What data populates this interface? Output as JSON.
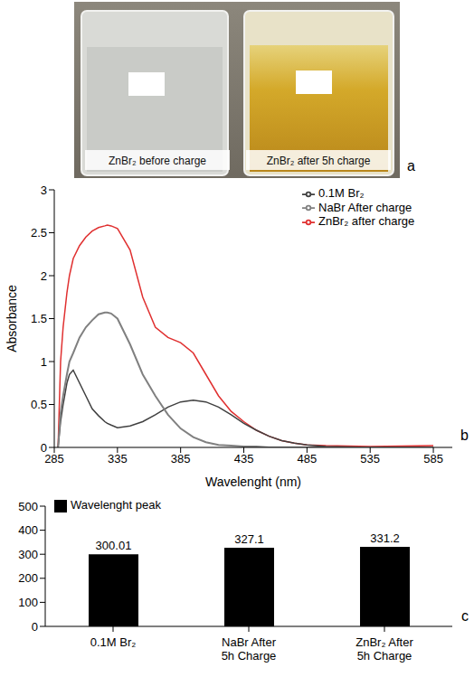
{
  "image": {
    "labels": [
      "ZnBr₂ before charge",
      "ZnBr₂ after 5h charge"
    ],
    "letter": "a"
  },
  "chart_data": [
    {
      "type": "line",
      "letter": "b",
      "x_label": "Wavelenght (nm)",
      "y_label": "Absorbance",
      "x": [
        288,
        290,
        292,
        295,
        297,
        300,
        305,
        310,
        315,
        320,
        325,
        327,
        330,
        335,
        345,
        355,
        365,
        375,
        385,
        395,
        405,
        415,
        425,
        435,
        445,
        455,
        465,
        475,
        485,
        500,
        535,
        585
      ],
      "xlim": [
        285,
        600
      ],
      "xticks": [
        285,
        335,
        385,
        435,
        485,
        535,
        585
      ],
      "ylim": [
        0,
        3
      ],
      "yticks": [
        0,
        0.5,
        1,
        1.5,
        2,
        2.5,
        3
      ],
      "grid": false,
      "legend": "top right",
      "series": [
        {
          "name": "ZnBr₂ after charge",
          "color": "#e03030",
          "values": [
            0,
            1.0,
            1.4,
            1.8,
            2.0,
            2.2,
            2.35,
            2.45,
            2.52,
            2.56,
            2.58,
            2.59,
            2.58,
            2.55,
            2.3,
            1.75,
            1.4,
            1.28,
            1.22,
            1.1,
            0.85,
            0.6,
            0.42,
            0.3,
            0.2,
            0.13,
            0.08,
            0.05,
            0.03,
            0.02,
            0.01,
            0.02
          ]
        },
        {
          "name": "0.1M Br₂",
          "color": "#404040",
          "values": [
            0,
            0.3,
            0.5,
            0.75,
            0.85,
            0.9,
            0.75,
            0.6,
            0.45,
            0.37,
            0.3,
            0.28,
            0.26,
            0.23,
            0.25,
            0.3,
            0.38,
            0.47,
            0.53,
            0.55,
            0.53,
            0.47,
            0.38,
            0.28,
            0.2,
            0.13,
            0.08,
            0.05,
            0.03,
            0.01,
            0,
            0
          ]
        },
        {
          "name": "NaBr After charge",
          "color": "#808080",
          "values": [
            0,
            0.4,
            0.6,
            0.85,
            1.0,
            1.1,
            1.28,
            1.4,
            1.48,
            1.55,
            1.57,
            1.57,
            1.56,
            1.5,
            1.2,
            0.85,
            0.6,
            0.38,
            0.22,
            0.12,
            0.06,
            0.03,
            0.02,
            0.01,
            0.01,
            0,
            0,
            0,
            0,
            0,
            0,
            0
          ]
        }
      ]
    },
    {
      "type": "bar",
      "letter": "c",
      "categories": [
        "0.1M Br₂",
        "NaBr After 5h Charge",
        "ZnBr₂ After 5h Charge"
      ],
      "series": [
        {
          "name": "Wavelenght peak",
          "color": "#000000",
          "values": [
            300.01,
            327.1,
            331.2
          ]
        }
      ],
      "ylim": [
        0,
        500
      ],
      "yticks": [
        0,
        100,
        200,
        300,
        400,
        500
      ],
      "data_labels": true,
      "grid": false,
      "legend": "top left"
    }
  ]
}
